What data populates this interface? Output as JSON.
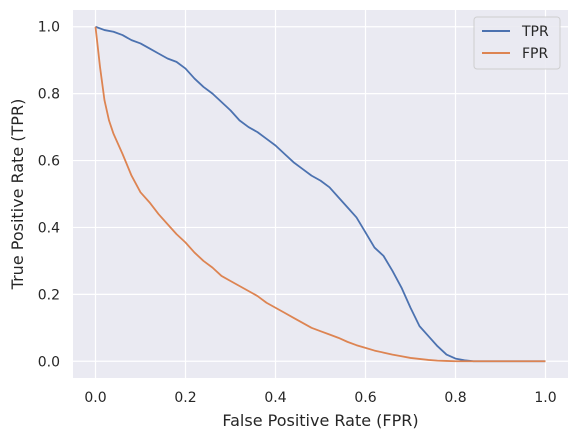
{
  "chart_data": {
    "type": "line",
    "xlabel": "False Positive Rate (FPR)",
    "ylabel": "True Positive Rate (TPR)",
    "xlim": [
      -0.05,
      1.05
    ],
    "ylim": [
      -0.05,
      1.05
    ],
    "xticks": [
      "0.0",
      "0.2",
      "0.4",
      "0.6",
      "0.8",
      "1.0"
    ],
    "yticks": [
      "0.0",
      "0.2",
      "0.4",
      "0.6",
      "0.8",
      "1.0"
    ],
    "grid": true,
    "legend_position": "top-right",
    "background_color": "#eaeaf2",
    "series": [
      {
        "name": "TPR",
        "color": "#4c72b0",
        "x": [
          0.0,
          0.02,
          0.04,
          0.06,
          0.08,
          0.1,
          0.12,
          0.14,
          0.16,
          0.18,
          0.2,
          0.22,
          0.24,
          0.26,
          0.28,
          0.3,
          0.32,
          0.34,
          0.36,
          0.38,
          0.4,
          0.42,
          0.44,
          0.46,
          0.48,
          0.5,
          0.52,
          0.54,
          0.56,
          0.58,
          0.6,
          0.62,
          0.64,
          0.66,
          0.68,
          0.7,
          0.72,
          0.74,
          0.76,
          0.78,
          0.8,
          0.82,
          0.84,
          0.9,
          1.0
        ],
        "y": [
          1.0,
          0.99,
          0.985,
          0.975,
          0.96,
          0.95,
          0.935,
          0.92,
          0.905,
          0.895,
          0.875,
          0.845,
          0.82,
          0.8,
          0.775,
          0.75,
          0.72,
          0.7,
          0.685,
          0.665,
          0.645,
          0.62,
          0.595,
          0.575,
          0.555,
          0.54,
          0.52,
          0.49,
          0.46,
          0.43,
          0.385,
          0.34,
          0.315,
          0.27,
          0.22,
          0.16,
          0.105,
          0.075,
          0.045,
          0.02,
          0.008,
          0.003,
          0.0,
          0.0,
          0.0
        ]
      },
      {
        "name": "FPR",
        "color": "#dd8452",
        "x": [
          0.0,
          0.01,
          0.02,
          0.03,
          0.04,
          0.06,
          0.08,
          0.1,
          0.12,
          0.14,
          0.16,
          0.18,
          0.2,
          0.22,
          0.24,
          0.26,
          0.28,
          0.3,
          0.32,
          0.34,
          0.36,
          0.38,
          0.4,
          0.42,
          0.44,
          0.46,
          0.48,
          0.5,
          0.52,
          0.54,
          0.56,
          0.58,
          0.6,
          0.62,
          0.64,
          0.66,
          0.68,
          0.7,
          0.72,
          0.74,
          0.76,
          0.78,
          0.8,
          0.82,
          0.84,
          0.9,
          1.0
        ],
        "y": [
          1.0,
          0.88,
          0.78,
          0.72,
          0.68,
          0.62,
          0.555,
          0.505,
          0.475,
          0.44,
          0.41,
          0.38,
          0.355,
          0.325,
          0.3,
          0.28,
          0.255,
          0.24,
          0.225,
          0.21,
          0.195,
          0.175,
          0.16,
          0.145,
          0.13,
          0.115,
          0.1,
          0.09,
          0.08,
          0.07,
          0.058,
          0.048,
          0.04,
          0.032,
          0.026,
          0.02,
          0.015,
          0.01,
          0.007,
          0.004,
          0.002,
          0.001,
          0.0,
          0.0,
          0.0,
          0.0,
          0.0
        ]
      }
    ]
  }
}
